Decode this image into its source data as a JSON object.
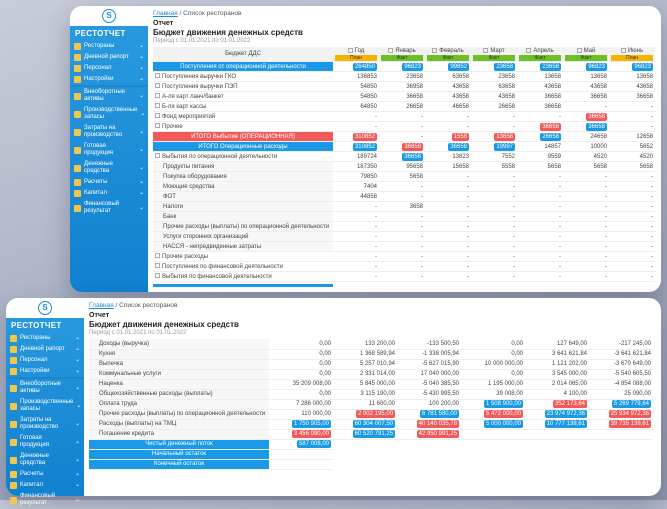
{
  "sidebar": {
    "brand": "РЕСТОТЧЕТ",
    "logo": "S",
    "items": [
      {
        "label": "Рестораны"
      },
      {
        "label": "Дневной рапорт"
      },
      {
        "label": "Персонал"
      },
      {
        "label": "Настройки"
      },
      {
        "label": "Внеоборотные активы"
      },
      {
        "label": "Производственные запасы"
      },
      {
        "label": "Затраты на производство"
      },
      {
        "label": "Готовая продукция"
      },
      {
        "label": "Денежные средства"
      },
      {
        "label": "Расчеты"
      },
      {
        "label": "Капитал"
      },
      {
        "label": "Финансовый результат"
      }
    ]
  },
  "breadcrumb": {
    "home": "Главная",
    "separator": " / ",
    "current": "Список ресторанов"
  },
  "report": {
    "kicker": "Отчет",
    "title": "Бюджет движения денежных средств",
    "period": "Период с 01.01.2021 по 01.01.2022"
  },
  "colors": {
    "accent": "#1a9ae6",
    "danger": "#f25a5a",
    "fact": "#6cc024",
    "plan": "#f5b400"
  },
  "front_table": {
    "header": "Бюджет ДДС",
    "columns": [
      {
        "label": "Год",
        "bar": "План",
        "bar_color": "plan"
      },
      {
        "label": "Январь",
        "bar": "Факт",
        "bar_color": "fact"
      },
      {
        "label": "Февраль",
        "bar": "Факт",
        "bar_color": "fact"
      },
      {
        "label": "Март",
        "bar": "Факт",
        "bar_color": "fact"
      },
      {
        "label": "Апрель",
        "bar": "Факт",
        "bar_color": "fact"
      },
      {
        "label": "Май",
        "bar": "Факт",
        "bar_color": "fact"
      },
      {
        "label": "Июнь",
        "bar": "План",
        "bar_color": "plan"
      }
    ],
    "rows": [
      {
        "label": "Поступления от операционной деятельности",
        "style": "blue",
        "cells": [
          {
            "text": "264850",
            "badge": "blue"
          },
          {
            "text": "96823",
            "badge": "blue"
          },
          {
            "text": "99852",
            "badge": "blue"
          },
          {
            "text": "23658",
            "badge": "blue"
          },
          {
            "text": "23658",
            "badge": "blue"
          },
          {
            "text": "96823",
            "badge": "blue"
          },
          {
            "text": "96823",
            "badge": "blue"
          }
        ]
      },
      {
        "label": "Поступления выручки ГКО",
        "cells": [
          {
            "text": "136853"
          },
          {
            "text": "23658"
          },
          {
            "text": "63658"
          },
          {
            "text": "23658"
          },
          {
            "text": "13658"
          },
          {
            "text": "13658"
          },
          {
            "text": "13658"
          }
        ]
      },
      {
        "label": "Поступления выручки ПЭП",
        "cells": [
          {
            "text": "54850"
          },
          {
            "text": "36958"
          },
          {
            "text": "43658"
          },
          {
            "text": "63658"
          },
          {
            "text": "43658"
          },
          {
            "text": "43658"
          },
          {
            "text": "43658"
          }
        ]
      },
      {
        "label": "А-ля карт ланч/банкет",
        "cells": [
          {
            "text": "54850"
          },
          {
            "text": "36658"
          },
          {
            "text": "43658"
          },
          {
            "text": "43658"
          },
          {
            "text": "36658"
          },
          {
            "text": "36658"
          },
          {
            "text": "36658"
          }
        ]
      },
      {
        "label": "Б-ля карт кассы",
        "cells": [
          {
            "text": "64850"
          },
          {
            "text": "26658"
          },
          {
            "text": "46658"
          },
          {
            "text": "26658"
          },
          {
            "text": "36658"
          },
          {
            "text": "-"
          },
          {
            "text": "-"
          }
        ]
      },
      {
        "label": "Фонд мероприятий",
        "cells": [
          {
            "text": "-"
          },
          {
            "text": "-"
          },
          {
            "text": "-"
          },
          {
            "text": "-"
          },
          {
            "text": "-"
          },
          {
            "text": "36658",
            "badge": "red"
          },
          {
            "text": "-"
          }
        ]
      },
      {
        "label": "Прочее",
        "cells": [
          {
            "text": "-"
          },
          {
            "text": "-"
          },
          {
            "text": "-"
          },
          {
            "text": "-"
          },
          {
            "text": "36658",
            "badge": "red"
          },
          {
            "text": "36658",
            "badge": "blue"
          },
          {
            "text": "-"
          }
        ]
      },
      {
        "label": "ИТОГО Выбытие (ОПЕРАЦИОННАЯ)",
        "style": "red",
        "cells": [
          {
            "text": "310852",
            "badge": "red"
          },
          {
            "text": "-"
          },
          {
            "text": "1558",
            "badge": "red"
          },
          {
            "text": "13658",
            "badge": "red"
          },
          {
            "text": "26658",
            "badge": "blue"
          },
          {
            "text": "24658"
          },
          {
            "text": "12658"
          }
        ]
      },
      {
        "label": "ИТОГО Операционные расходы",
        "style": "blue",
        "cells": [
          {
            "text": "310852",
            "badge": "blue"
          },
          {
            "text": "36658",
            "badge": "red"
          },
          {
            "text": "36658",
            "badge": "blue"
          },
          {
            "text": "19997",
            "badge": "blue"
          },
          {
            "text": "14857"
          },
          {
            "text": "10000"
          },
          {
            "text": "5652"
          }
        ]
      },
      {
        "label": "Выбытия по операционной деятельности",
        "cells": [
          {
            "text": "189724"
          },
          {
            "text": "36658",
            "badge": "blue"
          },
          {
            "text": "13823"
          },
          {
            "text": "7552"
          },
          {
            "text": "9559"
          },
          {
            "text": "4520"
          },
          {
            "text": "4520"
          }
        ]
      },
      {
        "label": "Продукты питания",
        "style": "sub",
        "cells": [
          {
            "text": "187350"
          },
          {
            "text": "95658"
          },
          {
            "text": "15658"
          },
          {
            "text": "5558"
          },
          {
            "text": "5658"
          },
          {
            "text": "5658"
          },
          {
            "text": "5658"
          }
        ]
      },
      {
        "label": "Покупка оборудования",
        "style": "sub",
        "cells": [
          {
            "text": "79850"
          },
          {
            "text": "5658"
          },
          {
            "text": "-"
          },
          {
            "text": "-"
          },
          {
            "text": "-"
          },
          {
            "text": "-"
          },
          {
            "text": "-"
          }
        ]
      },
      {
        "label": "Моющие средства",
        "style": "sub",
        "cells": [
          {
            "text": "7404"
          },
          {
            "text": "-"
          },
          {
            "text": "-"
          },
          {
            "text": "-"
          },
          {
            "text": "-"
          },
          {
            "text": "-"
          },
          {
            "text": "-"
          }
        ]
      },
      {
        "label": "ФОТ",
        "style": "sub",
        "cells": [
          {
            "text": "44858"
          },
          {
            "text": "-"
          },
          {
            "text": "-"
          },
          {
            "text": "-"
          },
          {
            "text": "-"
          },
          {
            "text": "-"
          },
          {
            "text": "-"
          }
        ]
      },
      {
        "label": "Налоги",
        "style": "sub",
        "cells": [
          {
            "text": "-"
          },
          {
            "text": "3658"
          },
          {
            "text": "-"
          },
          {
            "text": "-"
          },
          {
            "text": "-"
          },
          {
            "text": "-"
          },
          {
            "text": "-"
          }
        ]
      },
      {
        "label": "Банк",
        "style": "sub",
        "cells": [
          {
            "text": "-"
          },
          {
            "text": "-"
          },
          {
            "text": "-"
          },
          {
            "text": "-"
          },
          {
            "text": "-"
          },
          {
            "text": "-"
          },
          {
            "text": "-"
          }
        ]
      },
      {
        "label": "Прочие расходы (выплаты) по операционной деятельности",
        "style": "sub",
        "cells": [
          {
            "text": "-"
          },
          {
            "text": "-"
          },
          {
            "text": "-"
          },
          {
            "text": "-"
          },
          {
            "text": "-"
          },
          {
            "text": "-"
          },
          {
            "text": "-"
          }
        ]
      },
      {
        "label": "Услуги сторонних организаций",
        "style": "sub",
        "cells": [
          {
            "text": "-"
          },
          {
            "text": "-"
          },
          {
            "text": "-"
          },
          {
            "text": "-"
          },
          {
            "text": "-"
          },
          {
            "text": "-"
          },
          {
            "text": "-"
          }
        ]
      },
      {
        "label": "НАССЯ - непредвиденные затраты",
        "style": "sub",
        "cells": [
          {
            "text": "-"
          },
          {
            "text": "-"
          },
          {
            "text": "-"
          },
          {
            "text": "-"
          },
          {
            "text": "-"
          },
          {
            "text": "-"
          },
          {
            "text": "-"
          }
        ]
      },
      {
        "label": "Прочие расходы",
        "cells": [
          {
            "text": "-"
          },
          {
            "text": "-"
          },
          {
            "text": "-"
          },
          {
            "text": "-"
          },
          {
            "text": "-"
          },
          {
            "text": "-"
          },
          {
            "text": "-"
          }
        ]
      },
      {
        "label": "Поступления по финансовой деятельности",
        "cells": [
          {
            "text": "-"
          },
          {
            "text": "-"
          },
          {
            "text": "-"
          },
          {
            "text": "-"
          },
          {
            "text": "-"
          },
          {
            "text": "-"
          },
          {
            "text": "-"
          }
        ]
      },
      {
        "label": "Выбытия по финансовой деятельности",
        "cells": [
          {
            "text": "-"
          },
          {
            "text": "-"
          },
          {
            "text": "-"
          },
          {
            "text": "-"
          },
          {
            "text": "-"
          },
          {
            "text": "-"
          },
          {
            "text": "-"
          }
        ]
      }
    ]
  },
  "back_table": {
    "rows": [
      {
        "label": "Доходы (выручка)",
        "cells": [
          {
            "text": "0,00"
          },
          {
            "text": "133 200,00"
          },
          {
            "text": "-133 500,50"
          },
          {
            "text": "0,00"
          },
          {
            "text": "127 649,00"
          },
          {
            "text": "-217 245,00"
          }
        ]
      },
      {
        "label": "Кухня",
        "cells": [
          {
            "text": "0,00"
          },
          {
            "text": "1 368 589,94"
          },
          {
            "text": "-1 338 005,94"
          },
          {
            "text": "0,00"
          },
          {
            "text": "3 641 621,84"
          },
          {
            "text": "-3 641 621,84"
          }
        ]
      },
      {
        "label": "Выпечка",
        "cells": [
          {
            "text": "0,00"
          },
          {
            "text": "5 257 010,94"
          },
          {
            "text": "-5 627 015,90"
          },
          {
            "text": "10 000 000,00"
          },
          {
            "text": "1 121 202,00"
          },
          {
            "text": "-3 670 649,00"
          }
        ]
      },
      {
        "label": "Коммунальные услуги",
        "cells": [
          {
            "text": "0,00"
          },
          {
            "text": "2 331 014,00"
          },
          {
            "text": "17 040 000,00"
          },
          {
            "text": "0,00"
          },
          {
            "text": "3 545 000,00"
          },
          {
            "text": "-5 540 605,50"
          }
        ]
      },
      {
        "label": "Наценка",
        "cells": [
          {
            "text": "35 209 008,00"
          },
          {
            "text": "5 845 000,00"
          },
          {
            "text": "-5 040 385,50"
          },
          {
            "text": "1 195 000,00"
          },
          {
            "text": "2 014 065,00"
          },
          {
            "text": "-4 854 088,00"
          }
        ]
      },
      {
        "label": "Общехозяйственные расходы (выплаты)",
        "cells": [
          {
            "text": "0,00"
          },
          {
            "text": "3 115 190,00"
          },
          {
            "text": "-5 430 995,50"
          },
          {
            "text": "39 008,00"
          },
          {
            "text": "4 100,00"
          },
          {
            "text": "25 090,00"
          }
        ]
      },
      {
        "label": "Оплата труда",
        "cells": [
          {
            "text": "7 286 000,00"
          },
          {
            "text": "11 600,00"
          },
          {
            "text": "100 200,00"
          },
          {
            "text": "1 508 900,00",
            "badge": "blue"
          },
          {
            "text": "352 173,64",
            "badge": "red"
          },
          {
            "text": "5 269 779,64",
            "badge": "blue"
          }
        ]
      },
      {
        "label": "Прочие расходы (выплаты) по операционной деятельности",
        "cells": [
          {
            "text": "110 000,00"
          },
          {
            "text": "2 002 195,00",
            "badge": "red"
          },
          {
            "text": "6 781 580,00",
            "badge": "blue"
          },
          {
            "text": "5 472 000,00",
            "badge": "red"
          },
          {
            "text": "23 974 972,36",
            "badge": "blue"
          },
          {
            "text": "25 934 972,36",
            "badge": "red"
          }
        ]
      },
      {
        "label": "Расходы (выплаты) на ТМЦ",
        "cells": [
          {
            "text": "1 750 905,00",
            "badge": "blue"
          },
          {
            "text": "60 304 007,50",
            "badge": "blue"
          },
          {
            "text": "40 140 035,78",
            "badge": "red"
          },
          {
            "text": "5 000 000,00",
            "badge": "blue"
          },
          {
            "text": "10 777 138,61",
            "badge": "blue"
          },
          {
            "text": "39 735 138,61",
            "badge": "red"
          }
        ]
      },
      {
        "label": "Погашение кредита",
        "cells": [
          {
            "text": "3 456 090,00",
            "badge": "red"
          },
          {
            "text": "60 520 791,25",
            "badge": "blue"
          },
          {
            "text": "42 950 991,25",
            "badge": "red"
          },
          {
            "text": ""
          },
          {
            "text": ""
          },
          {
            "text": ""
          }
        ]
      }
    ],
    "footer": [
      "Чистый денежный поток",
      "Начальный остаток",
      "Конечный остаток"
    ],
    "footer_cells": [
      {
        "text": "587 008,00",
        "badge": "blue"
      }
    ]
  }
}
